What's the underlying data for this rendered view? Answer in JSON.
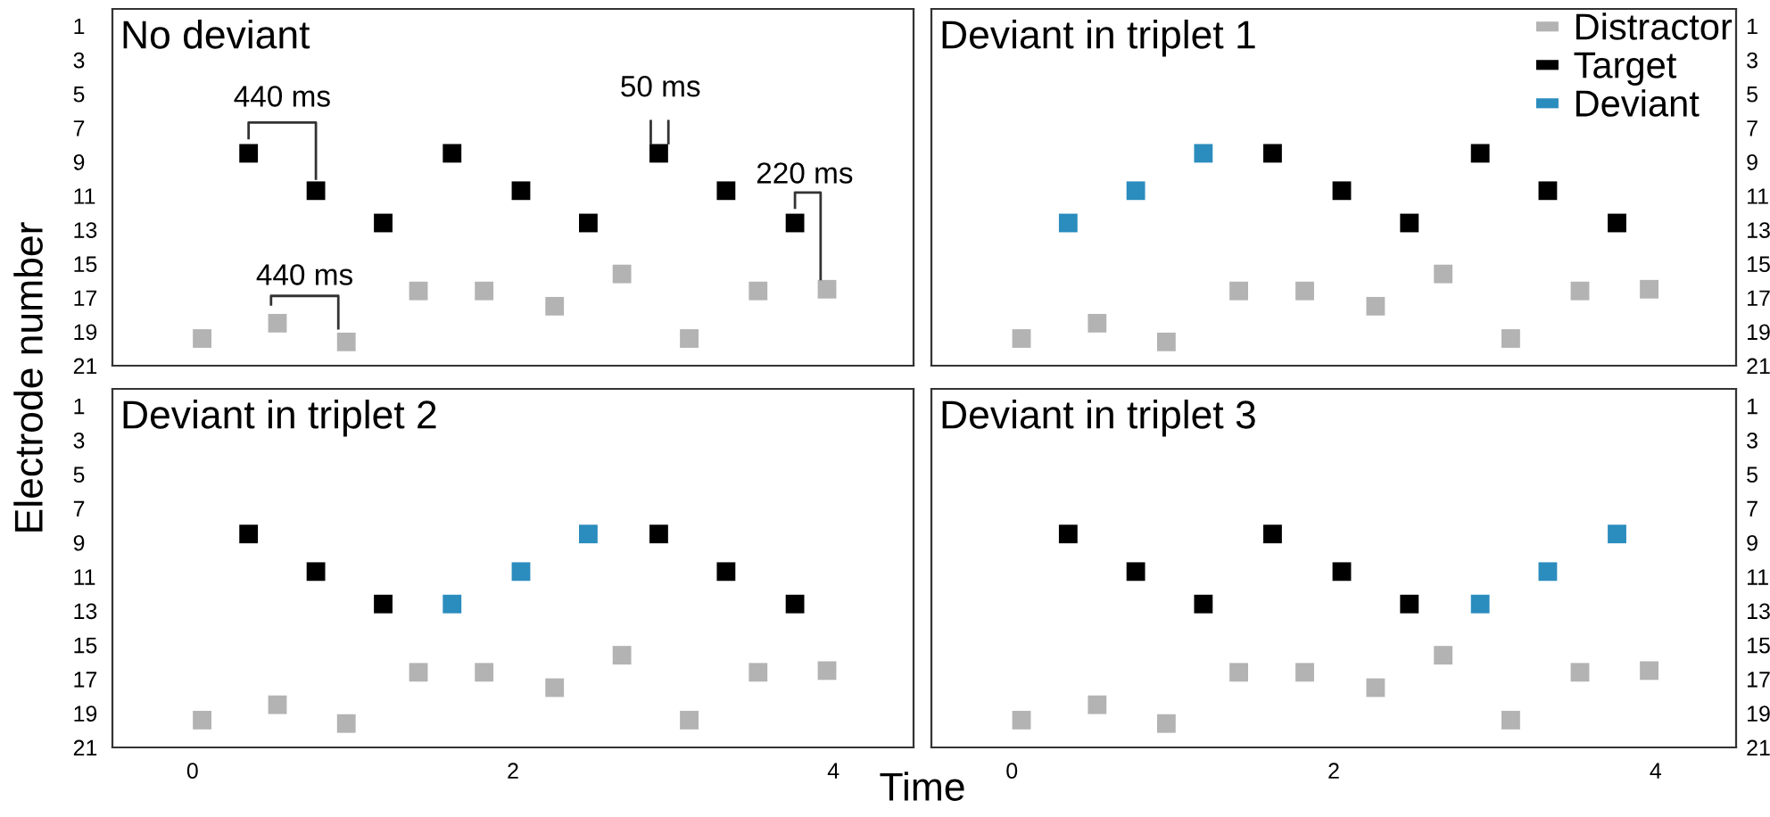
{
  "chart_data": [
    {
      "type": "scatter",
      "title": "No deviant",
      "ylabel": "Electrode number",
      "xlim": [
        -0.5,
        4.5
      ],
      "ylim": [
        21,
        0
      ],
      "xticks": [
        0,
        2,
        4
      ],
      "yticks": [
        1,
        3,
        5,
        7,
        9,
        11,
        13,
        15,
        17,
        19,
        21
      ],
      "tick_labels": "y",
      "marker": "square",
      "grid": false,
      "legend": false,
      "series": [
        {
          "color": "#b3b3b3",
          "x": [
            0.06,
            0.53,
            0.96,
            1.41,
            1.82,
            2.26,
            2.68,
            3.1,
            3.53,
            3.96
          ],
          "values": [
            19.4,
            18.5,
            19.6,
            16.6,
            16.6,
            17.5,
            15.6,
            19.4,
            16.6,
            16.5
          ]
        },
        {
          "color": "#000000",
          "x": [
            0.35,
            0.77,
            1.19,
            1.62,
            2.05,
            2.47,
            2.91,
            3.33,
            3.76
          ],
          "values": [
            8.5,
            10.7,
            12.6,
            8.5,
            10.7,
            12.6,
            8.5,
            10.7,
            12.6
          ]
        }
      ],
      "annotations": [
        {
          "text": "440 ms",
          "x": 0.35,
          "y": 8.5
        },
        "50 ms",
        {
          "text": "220 ms",
          "x": 3.76,
          "y": 12.6
        },
        "440 ms"
      ]
    },
    {
      "type": "scatter",
      "title": "Deviant in triplet 1",
      "xlim": [
        -0.5,
        4.5
      ],
      "ylim": [
        21,
        0
      ],
      "xticks": [
        0,
        2,
        4
      ],
      "yticks": [
        1,
        3,
        5,
        7,
        9,
        11,
        13,
        15,
        17,
        19,
        21
      ],
      "tick_labels": "y",
      "marker": "square",
      "grid": false,
      "legend": "top right",
      "series": [
        {
          "name": "Distractor",
          "color": "#b3b3b3",
          "x": [
            0.06,
            0.53,
            0.96,
            1.41,
            1.82,
            2.26,
            2.68,
            3.1,
            3.53,
            3.96
          ],
          "values": [
            19.4,
            18.5,
            19.6,
            16.6,
            16.6,
            17.5,
            15.6,
            19.4,
            16.6,
            16.5
          ]
        },
        {
          "name": "Target",
          "color": "#000000",
          "x": [
            1.62,
            2.05,
            2.47,
            2.91,
            3.33,
            3.76
          ],
          "values": [
            8.5,
            10.7,
            12.6,
            8.5,
            10.7,
            12.6
          ]
        },
        {
          "name": "Deviant",
          "color": "#2b8cbe",
          "x": [
            0.35,
            0.77,
            1.19
          ],
          "values": [
            12.6,
            10.7,
            8.5
          ]
        }
      ]
    },
    {
      "type": "scatter",
      "title": "Deviant in triplet 2",
      "xlabel": "Time",
      "xlim": [
        -0.5,
        4.5
      ],
      "ylim": [
        21,
        0
      ],
      "xticks": [
        0,
        2,
        4
      ],
      "yticks": [
        1,
        3,
        5,
        7,
        9,
        11,
        13,
        15,
        17,
        19,
        21
      ],
      "marker": "square",
      "grid": false,
      "legend": false,
      "series": [
        {
          "color": "#b3b3b3",
          "x": [
            0.06,
            0.53,
            0.96,
            1.41,
            1.82,
            2.26,
            2.68,
            3.1,
            3.53,
            3.96
          ],
          "values": [
            19.4,
            18.5,
            19.6,
            16.6,
            16.6,
            17.5,
            15.6,
            19.4,
            16.6,
            16.5
          ]
        },
        {
          "color": "#000000",
          "x": [
            0.35,
            0.77,
            1.19,
            2.91,
            3.33,
            3.76
          ],
          "values": [
            8.5,
            10.7,
            12.6,
            8.5,
            10.7,
            12.6
          ]
        },
        {
          "color": "#2b8cbe",
          "x": [
            1.62,
            2.05,
            2.47
          ],
          "values": [
            12.6,
            10.7,
            8.5
          ]
        }
      ]
    },
    {
      "type": "scatter",
      "title": "Deviant in triplet 3",
      "xlim": [
        -0.5,
        4.5
      ],
      "ylim": [
        21,
        0
      ],
      "xticks": [
        0,
        2,
        4
      ],
      "yticks": [
        1,
        3,
        5,
        7,
        9,
        11,
        13,
        15,
        17,
        19,
        21
      ],
      "marker": "square",
      "grid": false,
      "legend": false,
      "series": [
        {
          "color": "#b3b3b3",
          "x": [
            0.06,
            0.53,
            0.96,
            1.41,
            1.82,
            2.26,
            2.68,
            3.1,
            3.53,
            3.96
          ],
          "values": [
            19.4,
            18.5,
            19.6,
            16.6,
            16.6,
            17.5,
            15.6,
            19.4,
            16.6,
            16.5
          ]
        },
        {
          "color": "#000000",
          "x": [
            0.35,
            0.77,
            1.19,
            1.62,
            2.05,
            2.47
          ],
          "values": [
            8.5,
            10.7,
            12.6,
            8.5,
            10.7,
            12.6
          ]
        },
        {
          "color": "#2b8cbe",
          "x": [
            2.91,
            3.33,
            3.76
          ],
          "values": [
            12.6,
            10.7,
            8.5
          ]
        }
      ]
    }
  ]
}
